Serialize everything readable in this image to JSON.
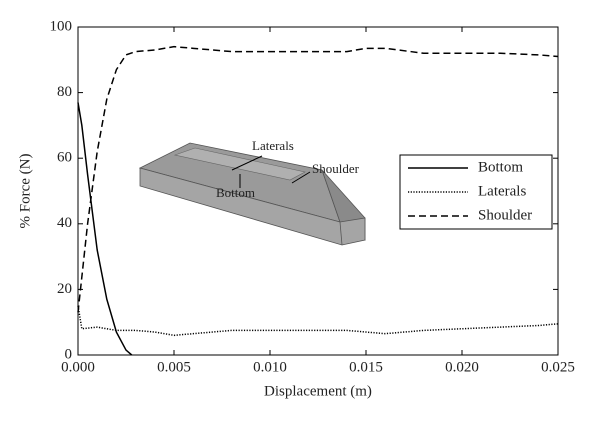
{
  "chart_data": {
    "type": "line",
    "xlabel": "Displacement (m)",
    "ylabel": "% Force (N)",
    "xlim": [
      0,
      0.025
    ],
    "ylim": [
      0,
      100
    ],
    "xticks": [
      {
        "value": 0,
        "label": "0.000"
      },
      0.005,
      {
        "value": 0.01,
        "label": "0.010"
      },
      0.015,
      {
        "value": 0.02,
        "label": "0.020"
      },
      0.025
    ],
    "yticks": [
      0,
      20,
      40,
      60,
      80,
      100
    ],
    "legend": "right",
    "annotations": [
      "Laterals",
      "Shoulder",
      "Bottom"
    ],
    "series": [
      {
        "name": "Bottom",
        "color": "#000000",
        "linestyle": "solid",
        "x": [
          0,
          0.0002,
          0.0005,
          0.001,
          0.0015,
          0.002,
          0.0025,
          0.0028
        ],
        "values": [
          77,
          70,
          55,
          32,
          17,
          7,
          1.5,
          0
        ]
      },
      {
        "name": "Laterals",
        "color": "#000000",
        "linestyle": "dotted",
        "x": [
          0,
          0.0002,
          0.001,
          0.002,
          0.003,
          0.004,
          0.005,
          0.006,
          0.008,
          0.01,
          0.012,
          0.014,
          0.015,
          0.016,
          0.018,
          0.02,
          0.022,
          0.024,
          0.025
        ],
        "values": [
          15,
          8,
          8.5,
          7.5,
          7.5,
          7,
          6,
          6.5,
          7.5,
          7.5,
          7.5,
          7.5,
          7,
          6.5,
          7.5,
          8,
          8.5,
          9,
          9.5
        ]
      },
      {
        "name": "Shoulder",
        "color": "#000000",
        "linestyle": "dashed",
        "x": [
          0,
          0.0005,
          0.001,
          0.0015,
          0.002,
          0.0025,
          0.003,
          0.004,
          0.005,
          0.006,
          0.008,
          0.01,
          0.012,
          0.014,
          0.015,
          0.016,
          0.018,
          0.02,
          0.022,
          0.024,
          0.025
        ],
        "values": [
          13,
          40,
          62,
          78,
          87,
          91.5,
          92.5,
          93,
          94,
          93.5,
          92.5,
          92.5,
          92.5,
          92.5,
          93.5,
          93.5,
          92,
          92,
          92,
          91.5,
          91
        ]
      }
    ]
  }
}
